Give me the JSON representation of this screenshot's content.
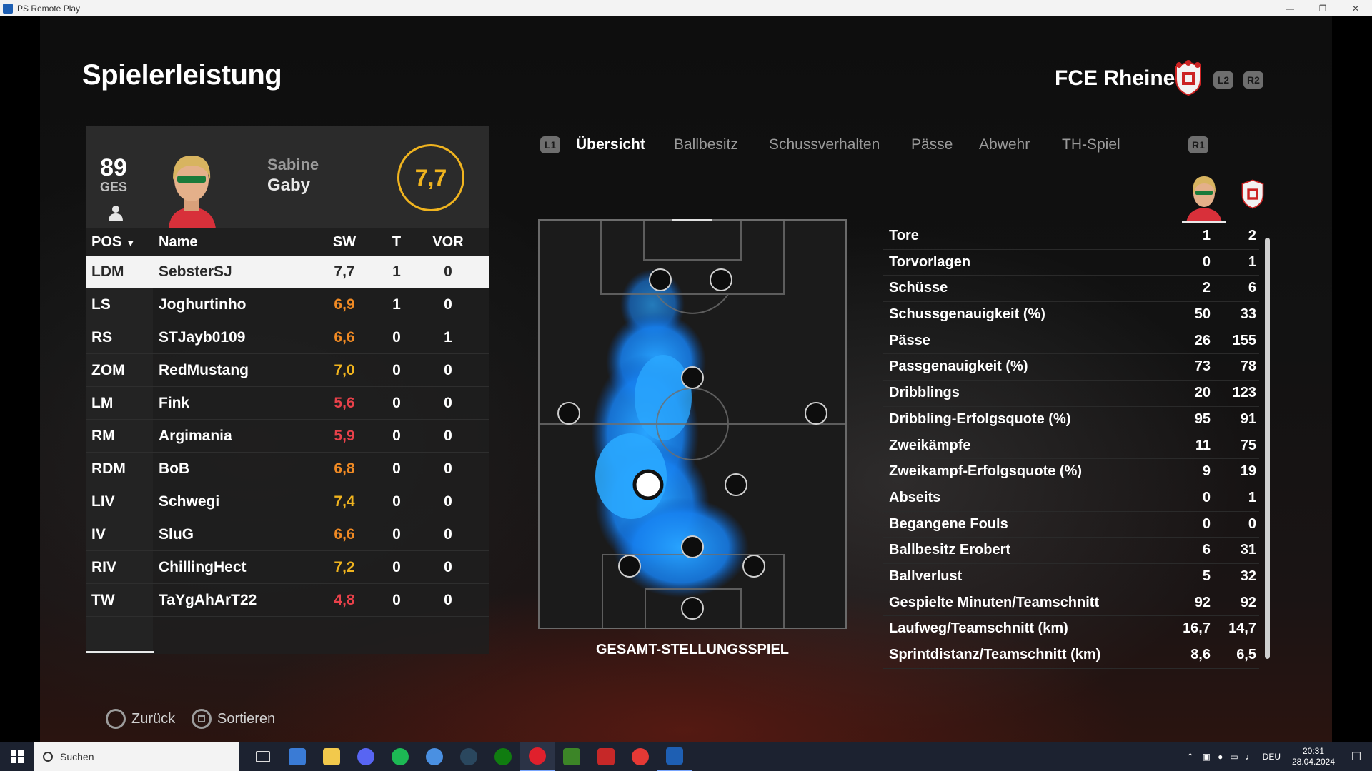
{
  "window": {
    "title": "PS Remote Play"
  },
  "header": {
    "title": "Spielerleistung",
    "team_name": "FCE Rheine",
    "btn_l2": "L2",
    "btn_r2": "R2"
  },
  "player_card": {
    "overall": "89",
    "overall_label": "GES",
    "first_name": "Sabine",
    "last_name": "Gaby",
    "match_rating": "7,7"
  },
  "table": {
    "headers": {
      "pos": "POS",
      "name": "Name",
      "sw": "SW",
      "t": "T",
      "vor": "VOR"
    },
    "rows": [
      {
        "pos": "LDM",
        "name": "SebsterSJ",
        "sw": "7,7",
        "t": "1",
        "vor": "0",
        "sw_color": "#2a2a2a"
      },
      {
        "pos": "LS",
        "name": "Joghurtinho",
        "sw": "6,9",
        "t": "1",
        "vor": "0",
        "sw_color": "#f08a24"
      },
      {
        "pos": "RS",
        "name": "STJayb0109",
        "sw": "6,6",
        "t": "0",
        "vor": "1",
        "sw_color": "#f08a24"
      },
      {
        "pos": "ZOM",
        "name": "RedMustang",
        "sw": "7,0",
        "t": "0",
        "vor": "0",
        "sw_color": "#f0b41f"
      },
      {
        "pos": "LM",
        "name": "Fink",
        "sw": "5,6",
        "t": "0",
        "vor": "0",
        "sw_color": "#e8414a"
      },
      {
        "pos": "RM",
        "name": "Argimania",
        "sw": "5,9",
        "t": "0",
        "vor": "0",
        "sw_color": "#e8414a"
      },
      {
        "pos": "RDM",
        "name": "BoB",
        "sw": "6,8",
        "t": "0",
        "vor": "0",
        "sw_color": "#f08a24"
      },
      {
        "pos": "LIV",
        "name": "Schwegi",
        "sw": "7,4",
        "t": "0",
        "vor": "0",
        "sw_color": "#f0b41f"
      },
      {
        "pos": "IV",
        "name": "SluG",
        "sw": "6,6",
        "t": "0",
        "vor": "0",
        "sw_color": "#f08a24"
      },
      {
        "pos": "RIV",
        "name": "ChillingHect",
        "sw": "7,2",
        "t": "0",
        "vor": "0",
        "sw_color": "#f0b41f"
      },
      {
        "pos": "TW",
        "name": "TaYgAhArT22",
        "sw": "4,8",
        "t": "0",
        "vor": "0",
        "sw_color": "#e8414a"
      }
    ]
  },
  "tabs": {
    "l1": "L1",
    "r1": "R1",
    "items": [
      {
        "label": "Übersicht",
        "active": true
      },
      {
        "label": "Ballbesitz",
        "active": false
      },
      {
        "label": "Schussverhalten",
        "active": false
      },
      {
        "label": "Pässe",
        "active": false
      },
      {
        "label": "Abwehr",
        "active": false
      },
      {
        "label": "TH-Spiel",
        "active": false
      }
    ]
  },
  "heatmap": {
    "caption": "GESAMT-STELLUNGSSPIEL",
    "color": "#1f8fff"
  },
  "stats": [
    {
      "label": "Tore",
      "player": "1",
      "team": "2"
    },
    {
      "label": "Torvorlagen",
      "player": "0",
      "team": "1"
    },
    {
      "label": "Schüsse",
      "player": "2",
      "team": "6"
    },
    {
      "label": "Schussgenauigkeit (%)",
      "player": "50",
      "team": "33"
    },
    {
      "label": "Pässe",
      "player": "26",
      "team": "155"
    },
    {
      "label": "Passgenauigkeit (%)",
      "player": "73",
      "team": "78"
    },
    {
      "label": "Dribblings",
      "player": "20",
      "team": "123"
    },
    {
      "label": "Dribbling-Erfolgsquote (%)",
      "player": "95",
      "team": "91"
    },
    {
      "label": "Zweikämpfe",
      "player": "11",
      "team": "75"
    },
    {
      "label": "Zweikampf-Erfolgsquote (%)",
      "player": "9",
      "team": "19"
    },
    {
      "label": "Abseits",
      "player": "0",
      "team": "1"
    },
    {
      "label": "Begangene Fouls",
      "player": "0",
      "team": "0"
    },
    {
      "label": "Ballbesitz Erobert",
      "player": "6",
      "team": "31"
    },
    {
      "label": "Ballverlust",
      "player": "5",
      "team": "32"
    },
    {
      "label": "Gespielte Minuten/Teamschnitt",
      "player": "92",
      "team": "92"
    },
    {
      "label": "Laufweg/Teamschnitt (km)",
      "player": "16,7",
      "team": "14,7"
    },
    {
      "label": "Sprintdistanz/Teamschnitt (km)",
      "player": "8,6",
      "team": "6,5"
    }
  ],
  "footer": {
    "back": "Zurück",
    "sort": "Sortieren"
  },
  "taskbar": {
    "search_placeholder": "Suchen",
    "lang": "DEU",
    "time": "20:31",
    "date": "28.04.2024"
  },
  "colors": {
    "rating_ring": "#f0b41f",
    "panel": "#2b2b2b",
    "selected_row": "#f3f3f3"
  }
}
